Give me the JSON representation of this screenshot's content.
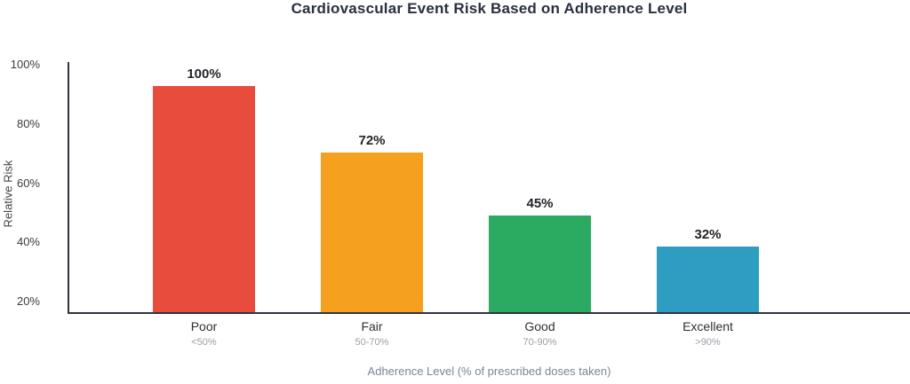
{
  "chart_data": {
    "type": "bar",
    "title": "Cardiovascular Event Risk Based on Adherence Level",
    "xlabel": "Adherence Level (% of prescribed doses taken)",
    "ylabel": "Relative Risk",
    "categories": [
      "Poor",
      "Fair",
      "Good",
      "Excellent"
    ],
    "category_sublabels": [
      "<50%",
      "50-70%",
      "70-90%",
      ">90%"
    ],
    "values": [
      100,
      72,
      45,
      32
    ],
    "value_labels": [
      "100%",
      "72%",
      "45%",
      "32%"
    ],
    "bar_colors": [
      "#e74c3c",
      "#f5a01e",
      "#2bab62",
      "#2d9dc1"
    ],
    "y_ticks": [
      "100%",
      "80%",
      "60%",
      "40%",
      "20%"
    ],
    "ylim": [
      0,
      100
    ],
    "grid": false,
    "legend": false
  },
  "colors": {
    "background": "#ffffff",
    "title": "#2a2f42",
    "axis": "#2e3440",
    "tick_label": "#3c3c3c",
    "category_label": "#2f2f2f",
    "sublabel": "#9aa0a6",
    "xlabel_text": "#7b8496",
    "value_label": "#222428"
  }
}
